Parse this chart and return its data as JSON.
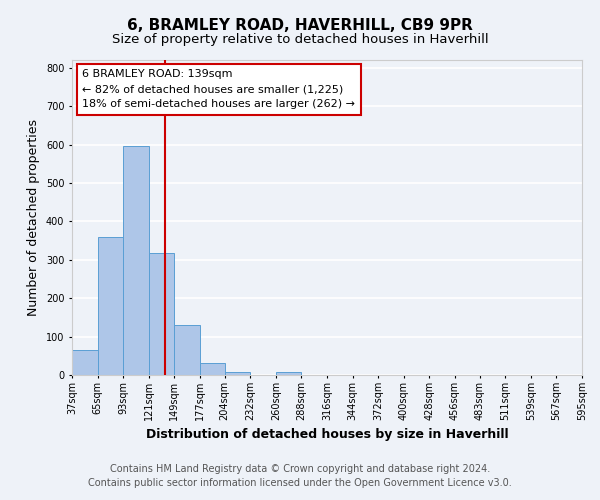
{
  "title": "6, BRAMLEY ROAD, HAVERHILL, CB9 9PR",
  "subtitle": "Size of property relative to detached houses in Haverhill",
  "xlabel": "Distribution of detached houses by size in Haverhill",
  "ylabel": "Number of detached properties",
  "bin_edges": [
    37,
    65,
    93,
    121,
    149,
    177,
    204,
    232,
    260,
    288,
    316,
    344,
    372,
    400,
    428,
    456,
    483,
    511,
    539,
    567,
    595
  ],
  "bar_heights": [
    65,
    358,
    595,
    318,
    130,
    30,
    8,
    0,
    8,
    0,
    0,
    0,
    0,
    0,
    0,
    0,
    0,
    0,
    0,
    0
  ],
  "bar_color": "#aec6e8",
  "bar_edge_color": "#5a9fd4",
  "property_value": 139,
  "vline_color": "#cc0000",
  "annotation_title": "6 BRAMLEY ROAD: 139sqm",
  "annotation_line1": "← 82% of detached houses are smaller (1,225)",
  "annotation_line2": "18% of semi-detached houses are larger (262) →",
  "annotation_box_color": "#ffffff",
  "annotation_border_color": "#cc0000",
  "ylim": [
    0,
    820
  ],
  "yticks": [
    0,
    100,
    200,
    300,
    400,
    500,
    600,
    700,
    800
  ],
  "tick_labels": [
    "37sqm",
    "65sqm",
    "93sqm",
    "121sqm",
    "149sqm",
    "177sqm",
    "204sqm",
    "232sqm",
    "260sqm",
    "288sqm",
    "316sqm",
    "344sqm",
    "372sqm",
    "400sqm",
    "428sqm",
    "456sqm",
    "483sqm",
    "511sqm",
    "539sqm",
    "567sqm",
    "595sqm"
  ],
  "footer_line1": "Contains HM Land Registry data © Crown copyright and database right 2024.",
  "footer_line2": "Contains public sector information licensed under the Open Government Licence v3.0.",
  "background_color": "#eef2f8",
  "grid_color": "#ffffff",
  "title_fontsize": 11,
  "subtitle_fontsize": 9.5,
  "axis_label_fontsize": 9,
  "tick_fontsize": 7,
  "footer_fontsize": 7,
  "annotation_fontsize": 8
}
